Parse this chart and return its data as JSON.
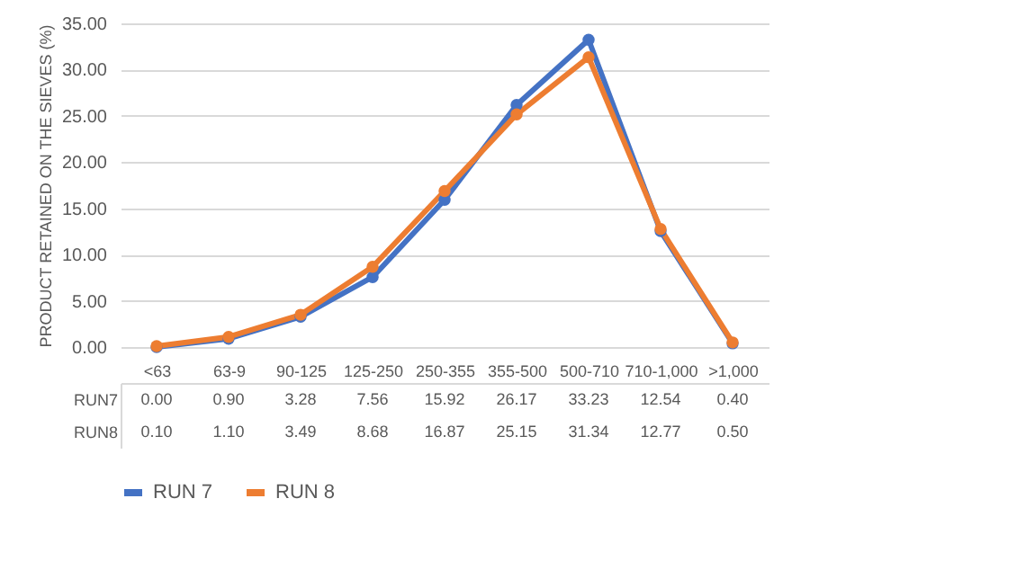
{
  "chart_data": {
    "type": "line",
    "ylabel": "PRODUCT RETAINED ON THE SIEVES (%)",
    "categories": [
      "<63",
      "63-9",
      "90-125",
      "125-250",
      "250-355",
      "355-500",
      "500-710",
      "710-1,000",
      ">1,000"
    ],
    "series": [
      {
        "name": "RUN 7",
        "color": "#4472c4",
        "values": [
          0.0,
          0.9,
          3.28,
          7.56,
          15.92,
          26.17,
          33.23,
          12.54,
          0.4
        ],
        "value_labels": [
          "0.00",
          "0.90",
          "3.28",
          "7.56",
          "15.92",
          "26.17",
          "33.23",
          "12.54",
          "0.40"
        ]
      },
      {
        "name": "RUN 8",
        "color": "#ed7d31",
        "values": [
          0.1,
          1.1,
          3.49,
          8.68,
          16.87,
          25.15,
          31.34,
          12.77,
          0.5
        ],
        "value_labels": [
          "0.10",
          "1.10",
          "3.49",
          "8.68",
          "16.87",
          "25.15",
          "31.34",
          "12.77",
          "0.50"
        ]
      }
    ],
    "annotations": [
      "RUN7",
      "RUN8"
    ],
    "ylim": [
      0,
      35
    ],
    "yticks": [
      {
        "value": 0,
        "label": "0.00"
      },
      {
        "value": 5,
        "label": "5.00"
      },
      {
        "value": 10,
        "label": "10.00"
      },
      {
        "value": 15,
        "label": "15.00"
      },
      {
        "value": 20,
        "label": "20.00"
      },
      {
        "value": 25,
        "label": "25.00"
      },
      {
        "value": 30,
        "label": "30.00"
      },
      {
        "value": 35,
        "label": "35.00"
      }
    ],
    "grid": "y",
    "marker": "circle",
    "line_style": "solid",
    "legend": "bottom"
  }
}
